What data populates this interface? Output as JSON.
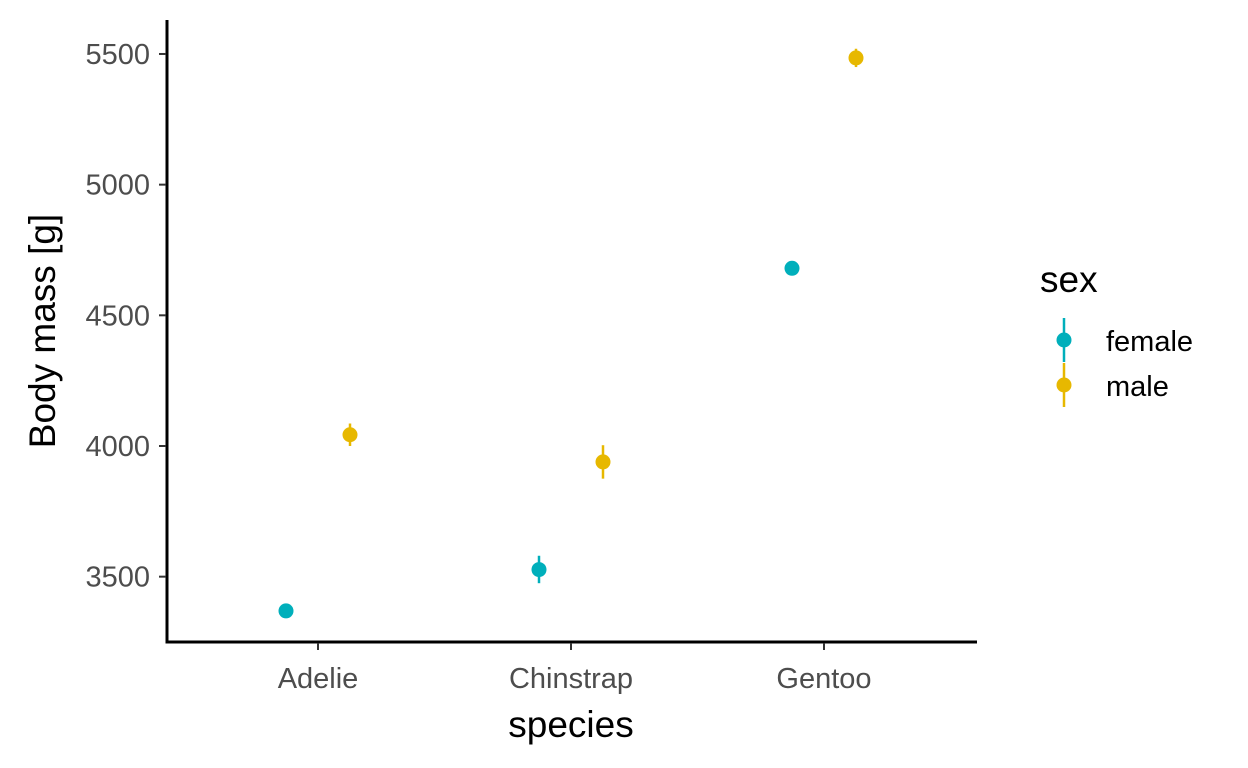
{
  "chart_data": {
    "type": "scatter",
    "xlabel": "species",
    "ylabel": "Body mass [g]",
    "categories": [
      "Adelie",
      "Chinstrap",
      "Gentoo"
    ],
    "ylim": [
      3250,
      5630
    ],
    "yticks": [
      3500,
      4000,
      4500,
      5000,
      5500
    ],
    "grid": false,
    "legend": {
      "title": "sex",
      "placement": "right"
    },
    "series": [
      {
        "name": "female",
        "color": "#00AFBB",
        "values": [
          3369,
          3527,
          4680
        ],
        "error_low": [
          3350,
          3475,
          4655
        ],
        "error_high": [
          3388,
          3580,
          4705
        ]
      },
      {
        "name": "male",
        "color": "#E7B800",
        "values": [
          4043,
          3939,
          5485
        ],
        "error_low": [
          4000,
          3875,
          5450
        ],
        "error_high": [
          4086,
          4003,
          5520
        ]
      }
    ]
  }
}
